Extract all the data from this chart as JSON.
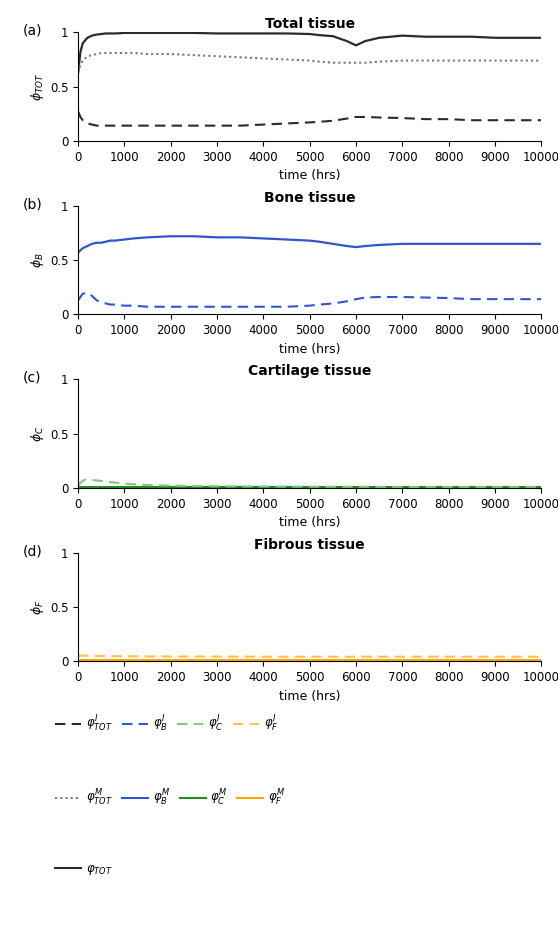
{
  "title_a": "Total tissue",
  "title_b": "Bone tissue",
  "title_c": "Cartilage tissue",
  "title_d": "Fibrous tissue",
  "xlabel": "time (hrs)",
  "ylabel_a": "$\\phi_{TOT}$",
  "ylabel_b": "$\\phi_{B}$",
  "ylabel_c": "$\\phi_{C}$",
  "ylabel_d": "$\\phi_{F}$",
  "xlim": [
    0,
    10000
  ],
  "ylim": [
    0,
    1
  ],
  "xticks": [
    0,
    1000,
    2000,
    3000,
    4000,
    5000,
    6000,
    7000,
    8000,
    9000,
    10000
  ],
  "yticks": [
    0,
    0.5,
    1
  ],
  "ytick_labels": [
    "0",
    "0.5",
    "1"
  ],
  "panel_a": {
    "phi_TOT_total": {
      "x": [
        0,
        50,
        100,
        200,
        300,
        400,
        500,
        600,
        700,
        800,
        1000,
        1200,
        1500,
        2000,
        2500,
        3000,
        3500,
        4000,
        4500,
        5000,
        5200,
        5500,
        5800,
        6000,
        6200,
        6500,
        7000,
        7500,
        8000,
        8500,
        9000,
        9500,
        10000
      ],
      "y": [
        0.63,
        0.82,
        0.9,
        0.95,
        0.97,
        0.98,
        0.985,
        0.99,
        0.99,
        0.99,
        0.995,
        0.995,
        0.995,
        0.995,
        0.995,
        0.99,
        0.99,
        0.99,
        0.99,
        0.985,
        0.975,
        0.965,
        0.92,
        0.88,
        0.92,
        0.95,
        0.97,
        0.96,
        0.96,
        0.96,
        0.95,
        0.95,
        0.95
      ],
      "style": "solid",
      "color": "#2b2b2b",
      "lw": 1.6
    },
    "phi_TOT_M": {
      "x": [
        0,
        50,
        100,
        200,
        300,
        400,
        500,
        600,
        700,
        800,
        1000,
        1200,
        1500,
        2000,
        2500,
        3000,
        3500,
        4000,
        4500,
        5000,
        5200,
        5500,
        5800,
        6000,
        6200,
        6500,
        7000,
        7500,
        8000,
        8500,
        9000,
        9500,
        10000
      ],
      "y": [
        0.63,
        0.7,
        0.74,
        0.78,
        0.79,
        0.8,
        0.81,
        0.81,
        0.81,
        0.81,
        0.81,
        0.81,
        0.8,
        0.8,
        0.79,
        0.78,
        0.77,
        0.76,
        0.75,
        0.74,
        0.73,
        0.72,
        0.72,
        0.72,
        0.72,
        0.73,
        0.74,
        0.74,
        0.74,
        0.74,
        0.74,
        0.74,
        0.74
      ],
      "style": "dotted",
      "color": "#777777",
      "lw": 1.5
    },
    "phi_TOT_I": {
      "x": [
        0,
        50,
        100,
        200,
        300,
        400,
        500,
        600,
        700,
        800,
        1000,
        1200,
        1500,
        2000,
        2500,
        3000,
        3500,
        4000,
        4500,
        5000,
        5200,
        5500,
        5800,
        6000,
        6200,
        6500,
        7000,
        7500,
        8000,
        8500,
        9000,
        9500,
        10000
      ],
      "y": [
        0.27,
        0.22,
        0.19,
        0.16,
        0.15,
        0.14,
        0.14,
        0.14,
        0.14,
        0.14,
        0.14,
        0.14,
        0.14,
        0.14,
        0.14,
        0.14,
        0.14,
        0.15,
        0.16,
        0.17,
        0.175,
        0.185,
        0.205,
        0.22,
        0.22,
        0.215,
        0.21,
        0.2,
        0.2,
        0.19,
        0.19,
        0.19,
        0.19
      ],
      "style": "dashed",
      "color": "#2b2b2b",
      "lw": 1.5
    }
  },
  "panel_b": {
    "phi_B_M": {
      "x": [
        0,
        50,
        100,
        200,
        300,
        400,
        500,
        600,
        700,
        800,
        1000,
        1200,
        1500,
        2000,
        2500,
        3000,
        3500,
        4000,
        4500,
        5000,
        5200,
        5500,
        5800,
        6000,
        6200,
        6500,
        7000,
        7500,
        8000,
        8500,
        9000,
        9500,
        10000
      ],
      "y": [
        0.57,
        0.59,
        0.61,
        0.63,
        0.65,
        0.66,
        0.66,
        0.67,
        0.68,
        0.68,
        0.69,
        0.7,
        0.71,
        0.72,
        0.72,
        0.71,
        0.71,
        0.7,
        0.69,
        0.68,
        0.67,
        0.65,
        0.63,
        0.62,
        0.63,
        0.64,
        0.65,
        0.65,
        0.65,
        0.65,
        0.65,
        0.65,
        0.65
      ],
      "style": "solid",
      "color": "#3355cc",
      "lw": 1.6
    },
    "phi_B_I": {
      "x": [
        0,
        50,
        100,
        200,
        300,
        400,
        500,
        600,
        700,
        800,
        1000,
        1200,
        1500,
        2000,
        2500,
        3000,
        3500,
        4000,
        4500,
        5000,
        5200,
        5500,
        5800,
        6000,
        6200,
        6500,
        7000,
        7500,
        8000,
        8500,
        9000,
        9500,
        10000
      ],
      "y": [
        0.13,
        0.16,
        0.19,
        0.2,
        0.17,
        0.13,
        0.11,
        0.1,
        0.09,
        0.09,
        0.08,
        0.08,
        0.07,
        0.07,
        0.07,
        0.07,
        0.07,
        0.07,
        0.07,
        0.08,
        0.09,
        0.1,
        0.12,
        0.14,
        0.155,
        0.16,
        0.16,
        0.155,
        0.15,
        0.14,
        0.14,
        0.14,
        0.14
      ],
      "style": "dashed",
      "color": "#3355cc",
      "lw": 1.5
    }
  },
  "panel_c": {
    "phi_C_M": {
      "x": [
        0,
        100,
        200,
        400,
        600,
        800,
        1000,
        2000,
        4000,
        6000,
        8000,
        10000
      ],
      "y": [
        0.005,
        0.005,
        0.005,
        0.005,
        0.005,
        0.005,
        0.005,
        0.005,
        0.005,
        0.005,
        0.005,
        0.005
      ],
      "style": "solid",
      "color": "#228B22",
      "lw": 1.5
    },
    "phi_C_I": {
      "x": [
        0,
        50,
        100,
        150,
        200,
        300,
        400,
        500,
        600,
        700,
        800,
        900,
        1000,
        1200,
        1500,
        2000,
        2500,
        3000,
        3500,
        4000,
        4500,
        5000,
        5500,
        6000,
        6500,
        7000,
        7500,
        8000,
        8500,
        9000,
        9500,
        10000
      ],
      "y": [
        0.02,
        0.045,
        0.065,
        0.075,
        0.075,
        0.072,
        0.068,
        0.063,
        0.058,
        0.053,
        0.048,
        0.044,
        0.04,
        0.033,
        0.026,
        0.02,
        0.017,
        0.015,
        0.013,
        0.012,
        0.011,
        0.01,
        0.009,
        0.009,
        0.009,
        0.008,
        0.008,
        0.008,
        0.008,
        0.008,
        0.008,
        0.008
      ],
      "style": "dashed",
      "color": "#7EC87E",
      "lw": 1.5
    }
  },
  "panel_d": {
    "phi_F_M": {
      "x": [
        0,
        100,
        200,
        400,
        600,
        800,
        1000,
        2000,
        4000,
        6000,
        8000,
        10000
      ],
      "y": [
        0.015,
        0.015,
        0.015,
        0.015,
        0.015,
        0.015,
        0.015,
        0.015,
        0.015,
        0.015,
        0.015,
        0.015
      ],
      "style": "solid",
      "color": "#FFA500",
      "lw": 1.5
    },
    "phi_F_I": {
      "x": [
        0,
        50,
        100,
        200,
        400,
        600,
        800,
        1000,
        1500,
        2000,
        4000,
        6000,
        8000,
        10000
      ],
      "y": [
        0.05,
        0.052,
        0.053,
        0.052,
        0.05,
        0.049,
        0.048,
        0.047,
        0.046,
        0.045,
        0.043,
        0.043,
        0.043,
        0.043
      ],
      "style": "dashed",
      "color": "#FFC04D",
      "lw": 1.5
    }
  },
  "legend_row1": [
    {
      "color": "#2b2b2b",
      "ls": "--",
      "label": "$\\varphi^{I}_{TOT}$"
    },
    {
      "color": "#3355cc",
      "ls": "--",
      "label": "$\\varphi^{I}_{B}$"
    },
    {
      "color": "#7EC87E",
      "ls": "--",
      "label": "$\\varphi^{I}_{C}$"
    },
    {
      "color": "#FFC04D",
      "ls": "--",
      "label": "$\\varphi^{I}_{F}$"
    }
  ],
  "legend_row2": [
    {
      "color": "#777777",
      "ls": ":",
      "label": "$\\varphi^{M}_{TOT}$"
    },
    {
      "color": "#3355cc",
      "ls": "-",
      "label": "$\\varphi^{M}_{B}$"
    },
    {
      "color": "#228B22",
      "ls": "-",
      "label": "$\\varphi^{M}_{C}$"
    },
    {
      "color": "#FFA500",
      "ls": "-",
      "label": "$\\varphi^{M}_{F}$"
    }
  ],
  "legend_row3": [
    {
      "color": "#2b2b2b",
      "ls": "-",
      "label": "$\\varphi_{TOT}$"
    }
  ]
}
